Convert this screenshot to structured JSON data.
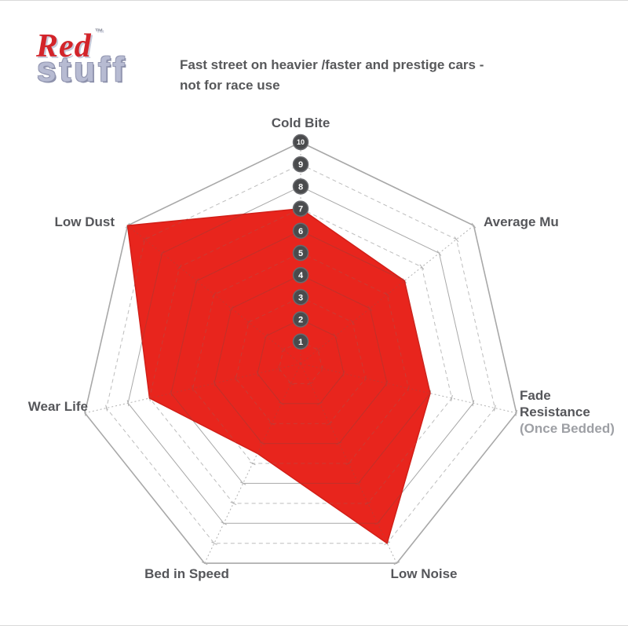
{
  "logo": {
    "brand_line1": "Red",
    "trademark": "™",
    "brand_line2": "stuff"
  },
  "tagline": {
    "line1": "Fast street on heavier /faster and prestige cars -",
    "line2": "not for race use"
  },
  "labels": {
    "cold_bite": "Cold Bite",
    "average_mu": "Average Mu",
    "fade_line1": "Fade",
    "fade_line2": "Resistance",
    "fade_line3": "(Once Bedded)",
    "low_noise": "Low Noise",
    "bed_in_speed": "Bed in Speed",
    "wear_life": "Wear Life",
    "low_dust": "Low Dust"
  },
  "chart_data": {
    "type": "radar",
    "categories": [
      "Cold Bite",
      "Average Mu",
      "Fade Resistance (Once Bedded)",
      "Low Noise",
      "Bed in Speed",
      "Wear Life",
      "Low Dust"
    ],
    "values": [
      7,
      6,
      6,
      9,
      4.5,
      7,
      10
    ],
    "scale": {
      "min": 1,
      "max": 10,
      "tick_labels": [
        "1",
        "2",
        "3",
        "4",
        "5",
        "6",
        "7",
        "8",
        "9",
        "10"
      ]
    },
    "grid": true,
    "legend": false,
    "colors": {
      "series_fill": "#e8251d",
      "series_edge": "#d11f18",
      "grid_solid": "#a8a8a8",
      "grid_dashed": "#bdbdbd",
      "axis_line": "#b2b2b2",
      "grid_inner_solid": "#c0312a",
      "grid_inner_dashed": "#ca3c34",
      "axis_inner": "#c53630",
      "marker_fill": "#4a4b4d",
      "marker_edge": "#6a6b6f",
      "marker_text": "#ffffff"
    }
  }
}
